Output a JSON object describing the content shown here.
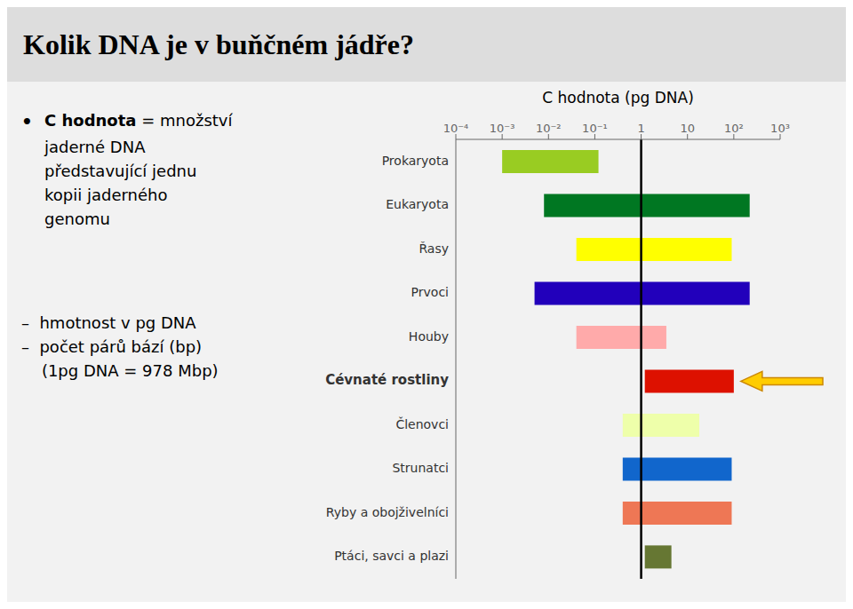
{
  "chart_data": {
    "type": "bar",
    "orientation": "horizontal",
    "title": "Kolik DNA je v buňčném jádře?",
    "x_label": "C hodnota (pg DNA)",
    "categories": [
      "Prokaryota",
      "Eukaryota",
      "Řasy",
      "Prvoci",
      "Houby",
      "Cévnaté rostliny",
      "Členovci",
      "Strunatci",
      "Ryby a obojživelníci",
      "Ptáci, savci a plazi"
    ],
    "values": [
      [
        0.001,
        0.12
      ],
      [
        0.008,
        220
      ],
      [
        0.04,
        90
      ],
      [
        0.005,
        220
      ],
      [
        0.04,
        3.5
      ],
      [
        1.2,
        100
      ],
      [
        0.4,
        18
      ],
      [
        0.4,
        90
      ],
      [
        0.4,
        90
      ],
      [
        1.2,
        4.5
      ]
    ],
    "colors": [
      "#99cc22",
      "#007722",
      "#ffff00",
      "#2200bb",
      "#ffaaaa",
      "#dd1100",
      "#eeffaa",
      "#1166cc",
      "#ee7755",
      "#667733"
    ],
    "log": "x",
    "xlim": [
      0.0001,
      1000
    ],
    "xticks": [
      {
        "value": 0.0001,
        "label": "10⁻⁴"
      },
      {
        "value": 0.001,
        "label": "10⁻³"
      },
      {
        "value": 0.01,
        "label": "10⁻²"
      },
      {
        "value": 0.1,
        "label": "10⁻¹"
      },
      1,
      10,
      {
        "value": 100,
        "label": "10²"
      },
      {
        "value": 1000,
        "label": "10³"
      }
    ],
    "grid": false,
    "reference_line": 1,
    "arrow": {
      "category": "Cévnaté rostliny",
      "color": "#ffcc00",
      "edge_color": "#cc8800"
    },
    "annotations": [
      "•",
      "C hodnota",
      "= množství",
      "jaderné DNA",
      "představující jednu",
      "kopii jaderného",
      "genomu",
      "–  hmotnost v pg DNA",
      "–  počet párů bází (bp)",
      "    (1pg DNA = 978 Mbp)"
    ]
  }
}
